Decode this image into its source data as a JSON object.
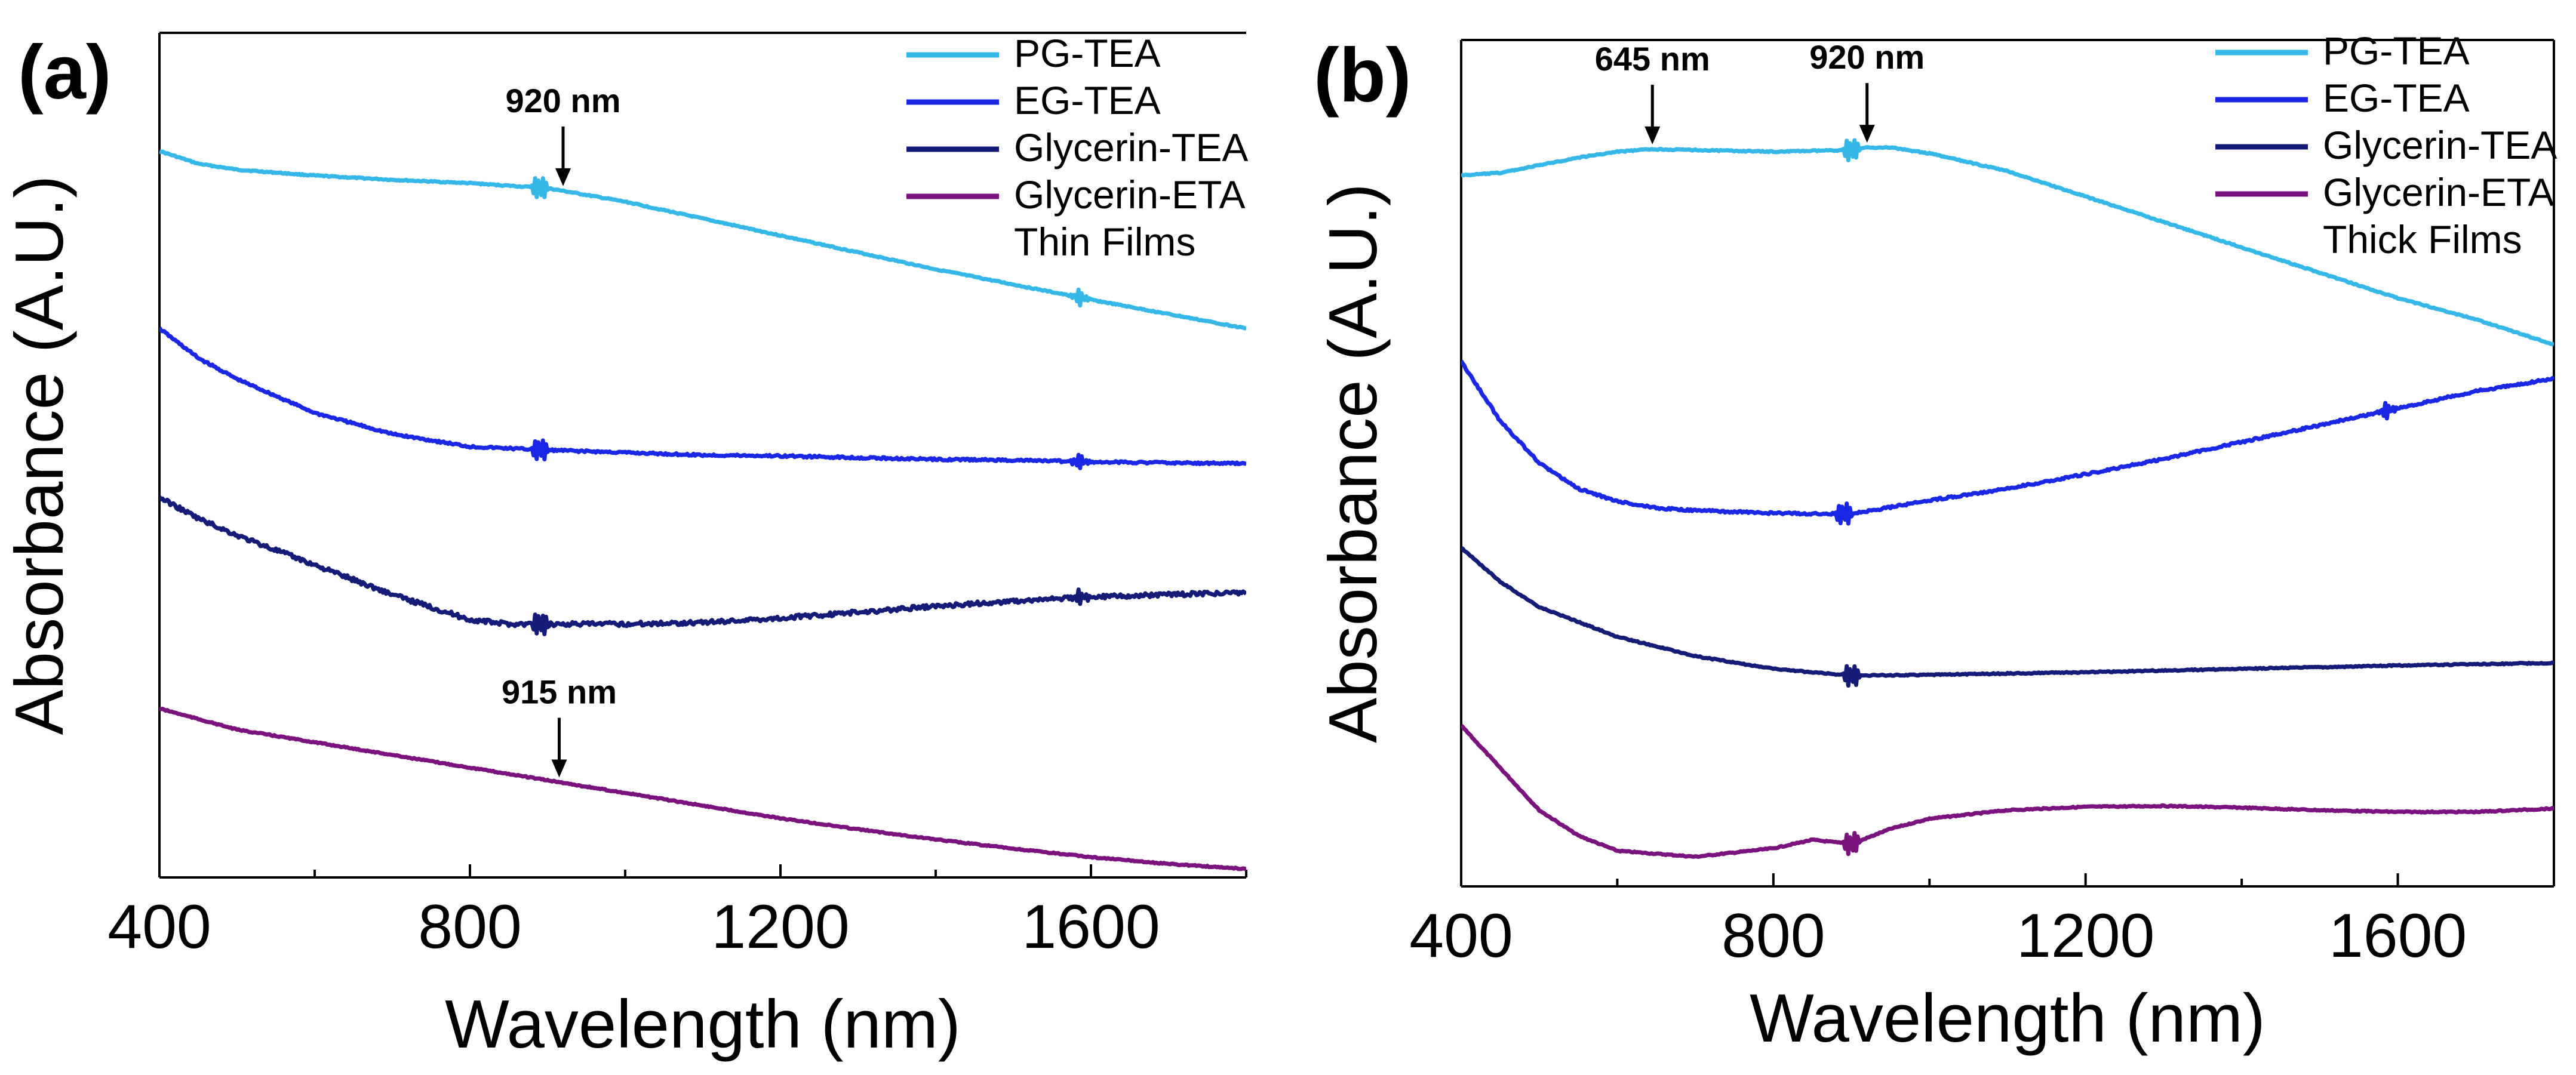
{
  "colors": {
    "PG-TEA": "#35b7e8",
    "EG-TEA": "#1a28e6",
    "Glycerin-TEA": "#141c78",
    "Glycerin-ETA": "#7a137e"
  },
  "chart_data": [
    {
      "type": "line",
      "panel_label": "(a)",
      "xlabel": "Wavelength (nm)",
      "ylabel": "Absorbance (A.U.)",
      "xlim": [
        400,
        1800
      ],
      "ylim": [
        0,
        1
      ],
      "xticks": [
        400,
        800,
        1200,
        1600
      ],
      "yticks_shown": false,
      "legend_position": "top-right",
      "legend_note": "Thin Films",
      "series": [
        {
          "name": "PG-TEA",
          "x": [
            400,
            450,
            500,
            600,
            700,
            800,
            900,
            1000,
            1100,
            1200,
            1300,
            1400,
            1500,
            1600,
            1700,
            1800
          ],
          "y": [
            0.86,
            0.845,
            0.838,
            0.831,
            0.826,
            0.822,
            0.816,
            0.8,
            0.78,
            0.76,
            0.74,
            0.72,
            0.702,
            0.684,
            0.667,
            0.65
          ],
          "glitch_x": [
            890,
            1585
          ]
        },
        {
          "name": "EG-TEA",
          "x": [
            400,
            450,
            500,
            600,
            700,
            800,
            900,
            1000,
            1100,
            1200,
            1300,
            1400,
            1500,
            1600,
            1700,
            1800
          ],
          "y": [
            0.65,
            0.615,
            0.59,
            0.55,
            0.525,
            0.51,
            0.506,
            0.503,
            0.5,
            0.499,
            0.497,
            0.495,
            0.494,
            0.492,
            0.491,
            0.49
          ],
          "glitch_x": [
            890,
            1585
          ]
        },
        {
          "name": "Glycerin-TEA",
          "x": [
            400,
            450,
            500,
            600,
            700,
            800,
            850,
            900,
            1000,
            1100,
            1200,
            1300,
            1400,
            1500,
            1600,
            1700,
            1800
          ],
          "y": [
            0.45,
            0.425,
            0.405,
            0.37,
            0.335,
            0.305,
            0.3,
            0.3,
            0.3,
            0.302,
            0.307,
            0.314,
            0.321,
            0.327,
            0.332,
            0.335,
            0.337
          ],
          "glitch_x": [
            890,
            1585
          ]
        },
        {
          "name": "Glycerin-ETA",
          "x": [
            400,
            500,
            600,
            700,
            800,
            900,
            1000,
            1100,
            1200,
            1300,
            1400,
            1500,
            1600,
            1700,
            1800
          ],
          "y": [
            0.2,
            0.175,
            0.16,
            0.145,
            0.13,
            0.115,
            0.1,
            0.085,
            0.07,
            0.057,
            0.045,
            0.034,
            0.024,
            0.016,
            0.01
          ],
          "glitch_x": []
        }
      ],
      "annotations": [
        {
          "text": "920 nm",
          "x": 920,
          "target_series": "PG-TEA",
          "from": "above"
        },
        {
          "text": "915 nm",
          "x": 915,
          "target_series": "Glycerin-ETA",
          "from": "above"
        }
      ]
    },
    {
      "type": "line",
      "panel_label": "(b)",
      "xlabel": "Wavelength (nm)",
      "ylabel": "Absorbance (A.U.)",
      "xlim": [
        400,
        1800
      ],
      "ylim": [
        0,
        1
      ],
      "xticks": [
        400,
        800,
        1200,
        1600
      ],
      "yticks_shown": false,
      "legend_position": "top-right",
      "legend_note": "Thick Films",
      "series": [
        {
          "name": "PG-TEA",
          "x": [
            400,
            450,
            500,
            550,
            600,
            645,
            700,
            800,
            900,
            920,
            950,
            1000,
            1100,
            1200,
            1300,
            1400,
            1500,
            1600,
            1700,
            1800
          ],
          "y": [
            0.84,
            0.843,
            0.852,
            0.861,
            0.868,
            0.871,
            0.87,
            0.868,
            0.87,
            0.873,
            0.873,
            0.866,
            0.845,
            0.815,
            0.785,
            0.755,
            0.725,
            0.695,
            0.67,
            0.64
          ],
          "glitch_x": [
            900
          ]
        },
        {
          "name": "EG-TEA",
          "x": [
            400,
            450,
            500,
            550,
            600,
            650,
            700,
            800,
            900,
            1000,
            1100,
            1200,
            1300,
            1400,
            1500,
            1600,
            1700,
            1800
          ],
          "y": [
            0.62,
            0.55,
            0.5,
            0.47,
            0.455,
            0.447,
            0.444,
            0.441,
            0.44,
            0.456,
            0.47,
            0.487,
            0.505,
            0.525,
            0.545,
            0.565,
            0.585,
            0.6
          ],
          "glitch_x": [
            890,
            1585
          ]
        },
        {
          "name": "Glycerin-TEA",
          "x": [
            400,
            450,
            500,
            600,
            700,
            800,
            900,
            1000,
            1200,
            1400,
            1600,
            1800
          ],
          "y": [
            0.4,
            0.36,
            0.33,
            0.295,
            0.272,
            0.257,
            0.249,
            0.25,
            0.253,
            0.257,
            0.261,
            0.264
          ],
          "glitch_x": [
            900
          ]
        },
        {
          "name": "Glycerin-ETA",
          "x": [
            400,
            450,
            500,
            550,
            600,
            700,
            800,
            850,
            900,
            950,
            1000,
            1100,
            1200,
            1300,
            1400,
            1500,
            1600,
            1700,
            1800
          ],
          "y": [
            0.19,
            0.14,
            0.09,
            0.06,
            0.042,
            0.035,
            0.045,
            0.055,
            0.05,
            0.068,
            0.08,
            0.09,
            0.094,
            0.095,
            0.093,
            0.09,
            0.088,
            0.088,
            0.092
          ],
          "glitch_x": [
            900
          ]
        }
      ],
      "annotations": [
        {
          "text": "645 nm",
          "x": 645,
          "target_series": "PG-TEA",
          "from": "above"
        },
        {
          "text": "920 nm",
          "x": 920,
          "target_series": "PG-TEA",
          "from": "above"
        }
      ]
    }
  ]
}
